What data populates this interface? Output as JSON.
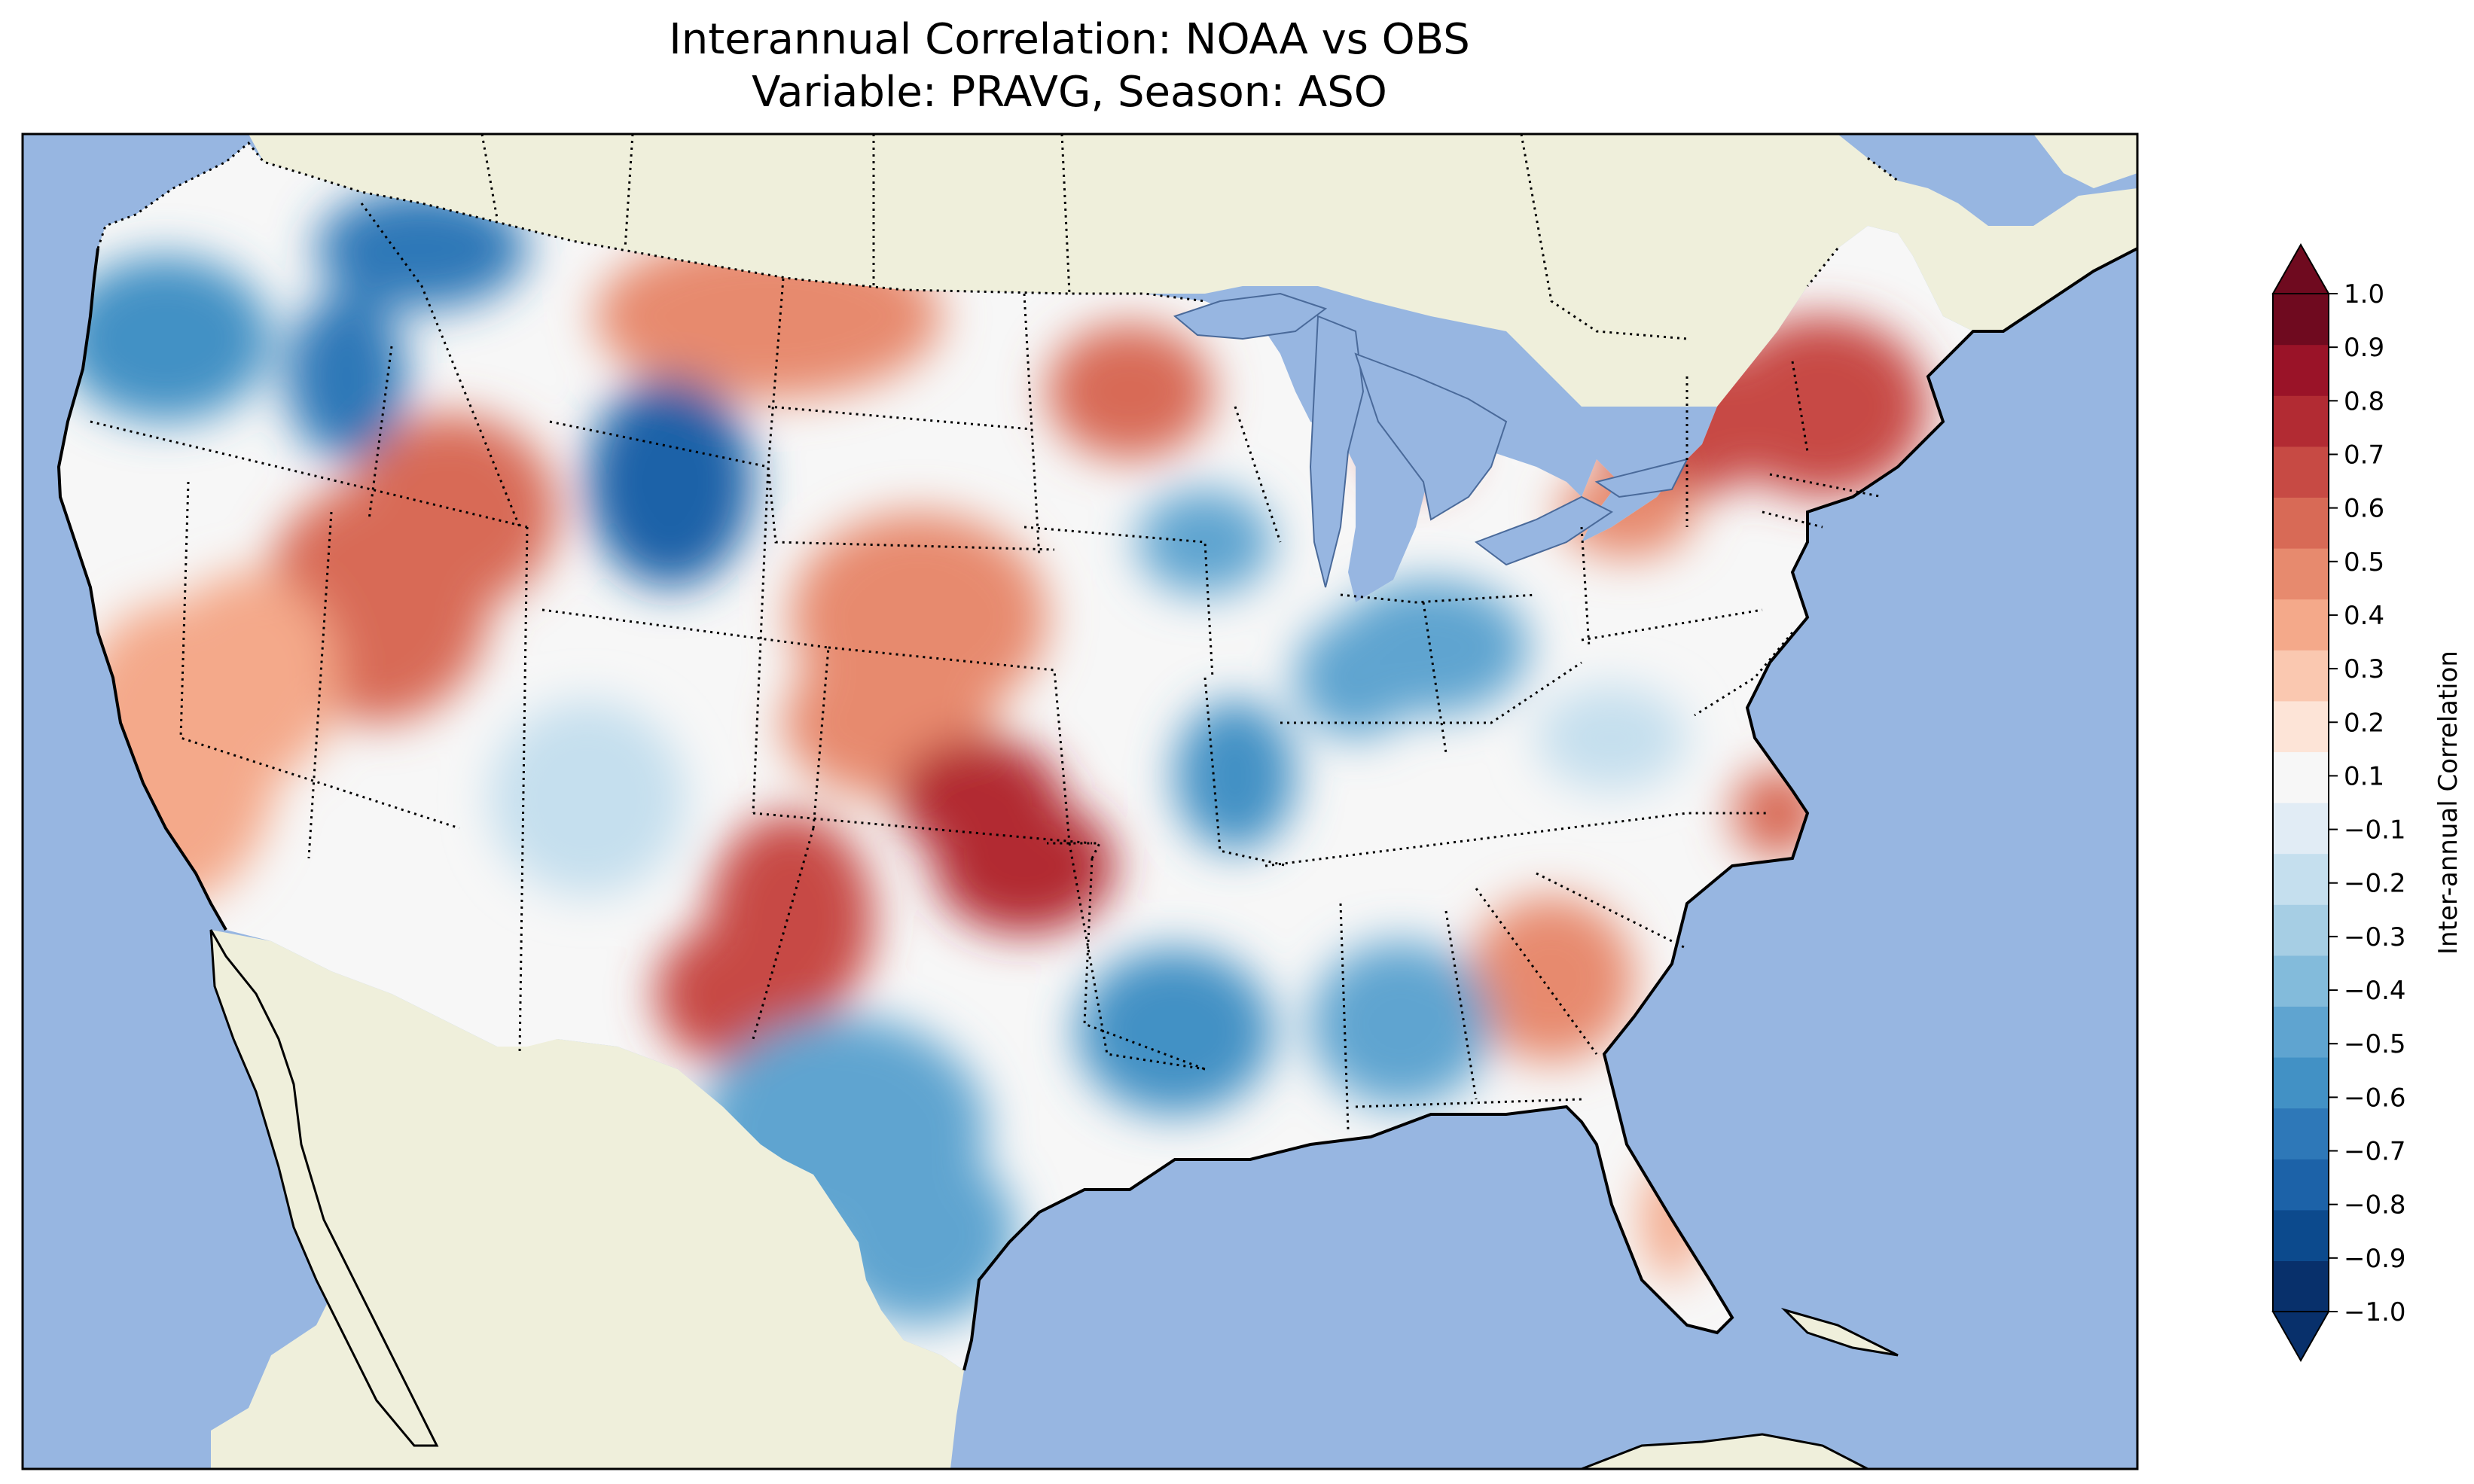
{
  "figure": {
    "title_line1": "Interannual Correlation: NOAA vs OBS",
    "title_line2": "Variable: PRAVG, Season: ASO"
  },
  "colors": {
    "ocean": "#97b6e1",
    "land": "#efefdb",
    "frame": "#000000"
  },
  "chart_data": {
    "type": "heatmap",
    "subtype": "filled-contour map",
    "title": "Interannual Correlation: NOAA vs OBS",
    "subtitle": "Variable: PRAVG, Season: ASO",
    "variable": "PRAVG",
    "season": "ASO",
    "comparison": [
      "NOAA",
      "OBS"
    ],
    "region": "Contiguous United States",
    "colorbar": {
      "label": "Inter-annual Correlation",
      "levels": [
        -1.0,
        -0.9,
        -0.8,
        -0.7,
        -0.6,
        -0.5,
        -0.4,
        -0.3,
        -0.2,
        -0.1,
        0.1,
        0.2,
        0.3,
        0.4,
        0.5,
        0.6,
        0.7,
        0.8,
        0.9,
        1.0
      ],
      "tick_labels": [
        "1.0",
        "0.9",
        "0.8",
        "0.7",
        "0.6",
        "0.5",
        "0.4",
        "0.3",
        "0.2",
        "0.1",
        "−0.1",
        "−0.2",
        "−0.3",
        "−0.4",
        "−0.5",
        "−0.6",
        "−0.7",
        "−0.8",
        "−0.9",
        "−1.0"
      ],
      "colors_low_to_high": [
        "#08306b",
        "#0c4a8d",
        "#1c62a8",
        "#2e78b8",
        "#4291c5",
        "#5fa4d0",
        "#83bbdb",
        "#a6cee4",
        "#c5dfee",
        "#e1ecf5",
        "#f7f7f7",
        "#fde4d7",
        "#fac8b0",
        "#f4a98a",
        "#e78a6e",
        "#d86a56",
        "#c74a44",
        "#b22b33",
        "#9a1328",
        "#6f0a1f"
      ],
      "extend": "both",
      "range": [
        -1.0,
        1.0
      ]
    },
    "regional_values": [
      {
        "region": "Northern Great Plains / Dakotas",
        "value": 0.45
      },
      {
        "region": "Nevada / Utah / Idaho",
        "value": 0.5
      },
      {
        "region": "California Central / Southern",
        "value": 0.4
      },
      {
        "region": "Nebraska / Kansas",
        "value": 0.45
      },
      {
        "region": "Oklahoma",
        "value": 0.7
      },
      {
        "region": "New Mexico",
        "value": 0.6
      },
      {
        "region": "Wisconsin",
        "value": 0.55
      },
      {
        "region": "Michigan",
        "value": 0.6
      },
      {
        "region": "New York / Vermont / New Hampshire",
        "value": 0.65
      },
      {
        "region": "Pennsylvania",
        "value": 0.45
      },
      {
        "region": "North Carolina coast",
        "value": 0.5
      },
      {
        "region": "Georgia / South Carolina",
        "value": 0.45
      },
      {
        "region": "Florida Peninsula",
        "value": 0.3
      },
      {
        "region": "Washington / Northern Idaho",
        "value": -0.6
      },
      {
        "region": "Western Montana",
        "value": -0.7
      },
      {
        "region": "Wyoming",
        "value": -0.75
      },
      {
        "region": "Iowa",
        "value": -0.5
      },
      {
        "region": "Indiana / Ohio",
        "value": -0.5
      },
      {
        "region": "Arkansas / Louisiana",
        "value": -0.55
      },
      {
        "region": "West and South Texas",
        "value": -0.45
      },
      {
        "region": "Mississippi / Alabama",
        "value": -0.4
      },
      {
        "region": "Colorado Plateau",
        "value": -0.2
      },
      {
        "region": "Virginia / West Virginia",
        "value": -0.2
      }
    ]
  }
}
